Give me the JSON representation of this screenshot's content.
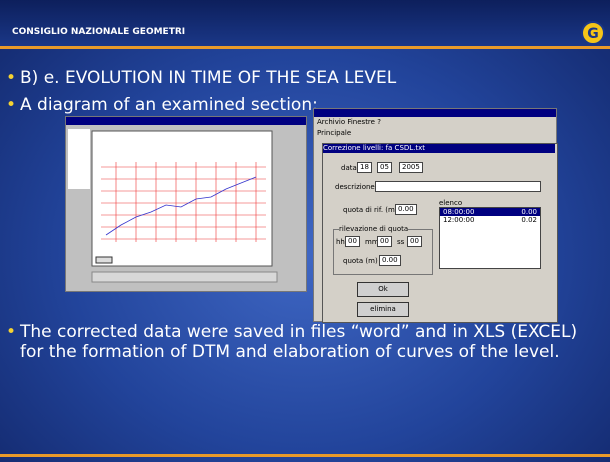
{
  "header": {
    "title": "CONSIGLIO NAZIONALE GEOMETRI"
  },
  "bullets": [
    "B) e. EVOLUTION IN TIME OF THE SEA LEVEL",
    "A diagram of an examined section:",
    "The corrected data were saved in files “word” and in XLS (EXCEL) for the formation of DTM and elaboration of curves of the level."
  ],
  "dialog": {
    "menu": "Archivio  Finestre  ?",
    "tab": "Principale",
    "title": "Correzione livelli: fa CSDL.txt",
    "date_label": "data",
    "day": "18",
    "month": "05",
    "year": "2005",
    "description_label": "descrizione",
    "reference_label": "quota di rif. (m)",
    "reference_value": "0.00",
    "list_label": "elenco",
    "list_rows": [
      [
        "08:00:00",
        "0.00"
      ],
      [
        "12:00:00",
        "0.02"
      ]
    ],
    "reading_label": "rilevazione di quota",
    "hh_label": "hh",
    "hh": "00",
    "mm_label": "mm",
    "mm": "00",
    "ss_label": "ss",
    "ss": "00",
    "height_label": "quota (m)",
    "height_value": "0.00",
    "ok": "Ok",
    "delete": "elimina"
  }
}
